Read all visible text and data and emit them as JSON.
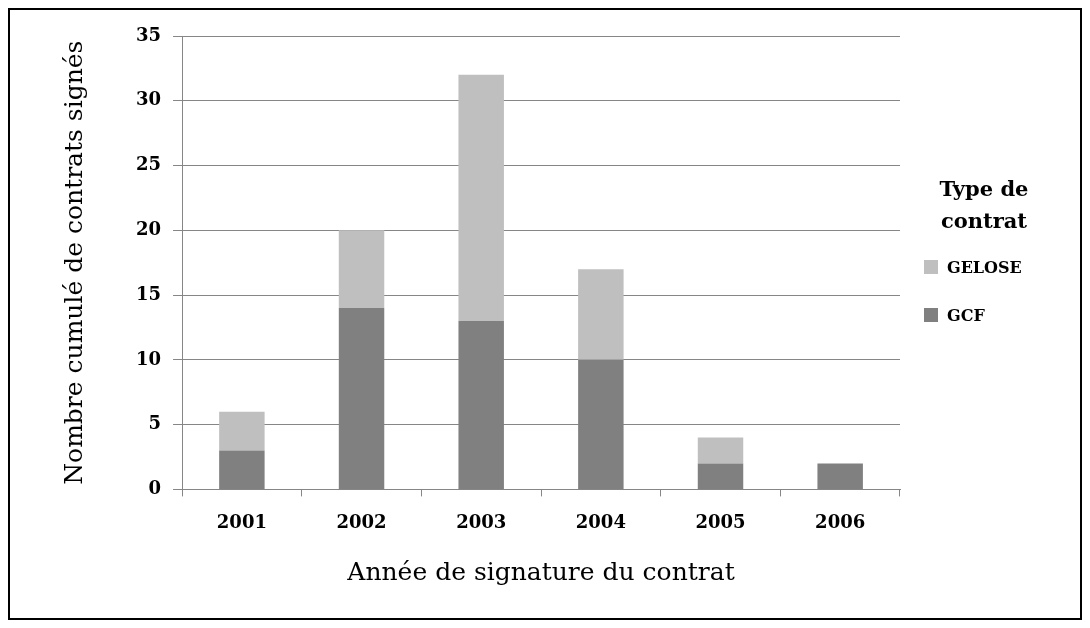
{
  "chart_data": {
    "type": "bar",
    "stacked": true,
    "categories": [
      "2001",
      "2002",
      "2003",
      "2004",
      "2005",
      "2006"
    ],
    "series": [
      {
        "name": "GCF",
        "color": "#808080",
        "values": [
          3,
          14,
          13,
          10,
          2,
          2
        ]
      },
      {
        "name": "GELOSE",
        "color": "#bfbfbf",
        "values": [
          3,
          6,
          19,
          7,
          2,
          0
        ]
      }
    ],
    "xlabel": "Année de signature du contrat",
    "ylabel": "Nombre cumulé de contrats signés",
    "legend_title": "Type de contrat",
    "legend": "right",
    "grid": "y",
    "ylim": [
      0,
      35
    ],
    "yticks": [
      0,
      5,
      10,
      15,
      20,
      25,
      30,
      35
    ]
  }
}
